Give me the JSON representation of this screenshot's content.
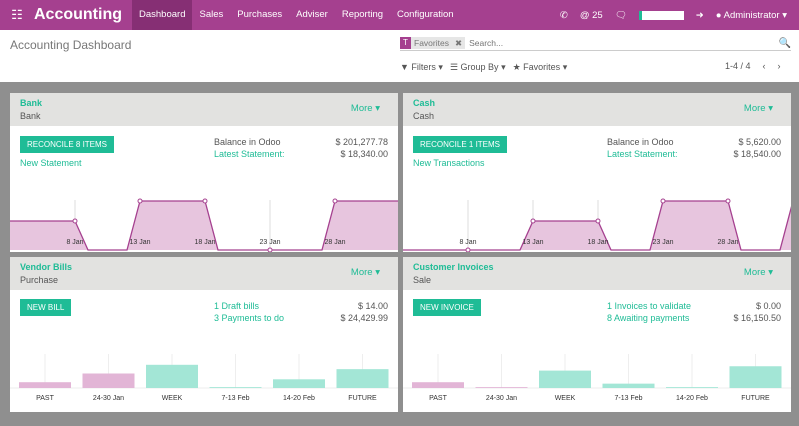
{
  "nav": {
    "app": "Accounting",
    "menu": [
      "Dashboard",
      "Sales",
      "Purchases",
      "Adviser",
      "Reporting",
      "Configuration"
    ],
    "active": "Dashboard",
    "count": "25",
    "user": "Administrator",
    "icons": [
      "phone-icon",
      "at-icon",
      "chat-icon",
      "logout-icon"
    ]
  },
  "control": {
    "title": "Accounting Dashboard",
    "facet": "Favorites",
    "search_placeholder": "Search...",
    "filters": "Filters",
    "groupby": "Group By",
    "favorites": "Favorites",
    "pager": "1-4 / 4"
  },
  "colors": {
    "brand": "#a5408f",
    "accent": "#1fbc96",
    "area": "#e7c5de",
    "bar_past": "#e2b5d6",
    "bar_future": "#a3e6d6"
  },
  "cards": [
    {
      "name": "Bank",
      "sub": "Bank",
      "more": "More",
      "button": "RECONCILE 8 ITEMS",
      "link": "New Statement",
      "l1": "Balance in Odoo",
      "v1": "$ 201,277.78",
      "l2": "Latest Statement:",
      "v2": "$ 18,340.00"
    },
    {
      "name": "Cash",
      "sub": "Cash",
      "more": "More",
      "button": "RECONCILE 1 ITEMS",
      "link": "New Transactions",
      "l1": "Balance in Odoo",
      "v1": "$ 5,620.00",
      "l2": "Latest Statement:",
      "v2": "$ 18,540.00"
    },
    {
      "name": "Vendor Bills",
      "sub": "Purchase",
      "more": "More",
      "button": "NEW BILL",
      "l1": "1 Draft bills",
      "v1": "$ 14.00",
      "l2": "3 Payments to do",
      "v2": "$ 24,429.99"
    },
    {
      "name": "Customer Invoices",
      "sub": "Sale",
      "more": "More",
      "button": "NEW INVOICE",
      "l1": "1 Invoices to validate",
      "v1": "$ 0.00",
      "l2": "8 Awaiting payments",
      "v2": "$ 16,150.50"
    }
  ],
  "chart_data": [
    {
      "type": "area",
      "ticks": [
        "8 Jan",
        "13 Jan",
        "18 Jan",
        "23 Jan",
        "28 Jan"
      ],
      "x_days": [
        3,
        8,
        9,
        12,
        13,
        18,
        19,
        27,
        28,
        33
      ],
      "values": [
        1,
        1,
        0,
        0,
        2,
        2,
        0,
        0,
        2,
        2
      ]
    },
    {
      "type": "area",
      "ticks": [
        "8 Jan",
        "13 Jan",
        "18 Jan",
        "23 Jan",
        "28 Jan"
      ],
      "x_days": [
        3,
        12,
        13,
        18,
        19,
        22,
        23,
        28,
        29,
        32,
        33
      ],
      "values": [
        0,
        0,
        1,
        1,
        0,
        0,
        2,
        2,
        0,
        0,
        2
      ]
    },
    {
      "type": "bar",
      "categories": [
        "PAST",
        "24-30 Jan",
        "WEEK",
        "7-13 Feb",
        "14-20 Feb",
        "FUTURE"
      ],
      "values": [
        2,
        5,
        8,
        0.3,
        3,
        6.5
      ]
    },
    {
      "type": "bar",
      "categories": [
        "PAST",
        "24-30 Jan",
        "WEEK",
        "7-13 Feb",
        "14-20 Feb",
        "FUTURE"
      ],
      "values": [
        2,
        0.3,
        6,
        1.5,
        0.3,
        7.5
      ]
    }
  ]
}
